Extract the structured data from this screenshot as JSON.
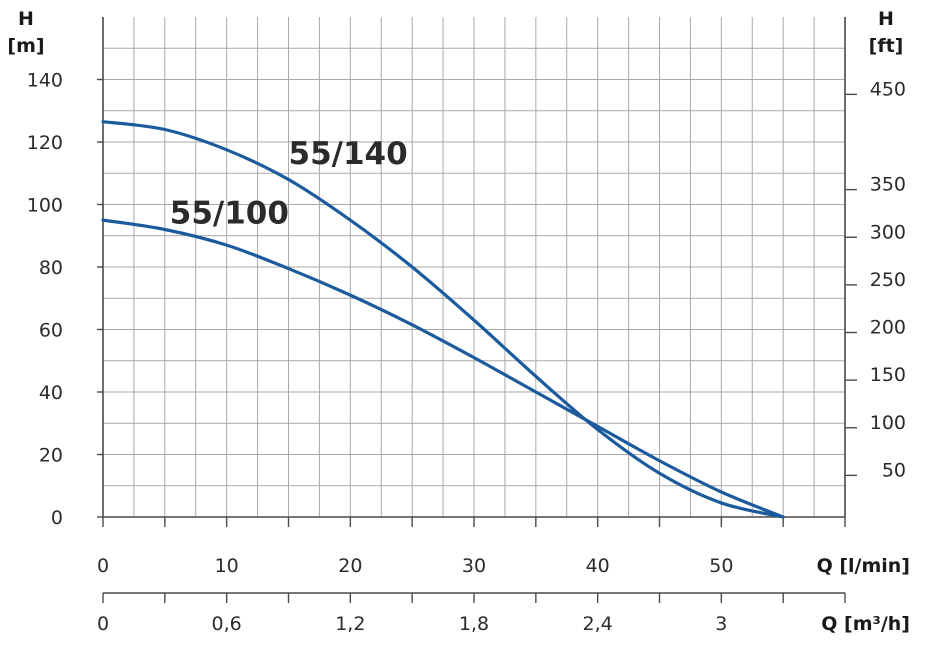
{
  "chart_data": {
    "type": "line",
    "x_primary": {
      "label": "Q [l/min]",
      "ticks": [
        0,
        10,
        20,
        30,
        40,
        50
      ],
      "range": [
        0,
        60
      ]
    },
    "x_secondary": {
      "label": "Q [m³/h]",
      "ticks": [
        "0",
        "0,6",
        "1,2",
        "1,8",
        "2,4",
        "3"
      ],
      "tick_values_lmin": [
        0,
        10,
        20,
        30,
        40,
        50
      ]
    },
    "y_left": {
      "label_line1": "H",
      "label_line2": "[m]",
      "ticks": [
        0,
        20,
        40,
        60,
        80,
        100,
        120,
        140
      ],
      "range": [
        0,
        160
      ]
    },
    "y_right": {
      "label_line1": "H",
      "label_line2": "[ft]",
      "ticks": [
        50,
        100,
        150,
        200,
        250,
        300,
        350,
        450
      ]
    },
    "grid": true,
    "series": [
      {
        "name": "55/140",
        "color": "#1b5b9d",
        "points": [
          [
            0,
            126.5
          ],
          [
            5,
            124
          ],
          [
            10,
            117.5
          ],
          [
            15,
            108
          ],
          [
            20,
            95
          ],
          [
            25,
            80
          ],
          [
            30,
            63
          ],
          [
            35,
            45
          ],
          [
            40,
            28
          ],
          [
            45,
            14
          ],
          [
            50,
            4.5
          ],
          [
            55,
            0
          ]
        ]
      },
      {
        "name": "55/100",
        "color": "#1b5b9d",
        "points": [
          [
            0,
            95
          ],
          [
            5,
            92
          ],
          [
            10,
            87
          ],
          [
            15,
            79.5
          ],
          [
            20,
            71
          ],
          [
            25,
            61.5
          ],
          [
            30,
            51
          ],
          [
            35,
            40
          ],
          [
            40,
            29
          ],
          [
            45,
            18
          ],
          [
            50,
            8
          ],
          [
            55,
            0
          ]
        ]
      }
    ]
  }
}
